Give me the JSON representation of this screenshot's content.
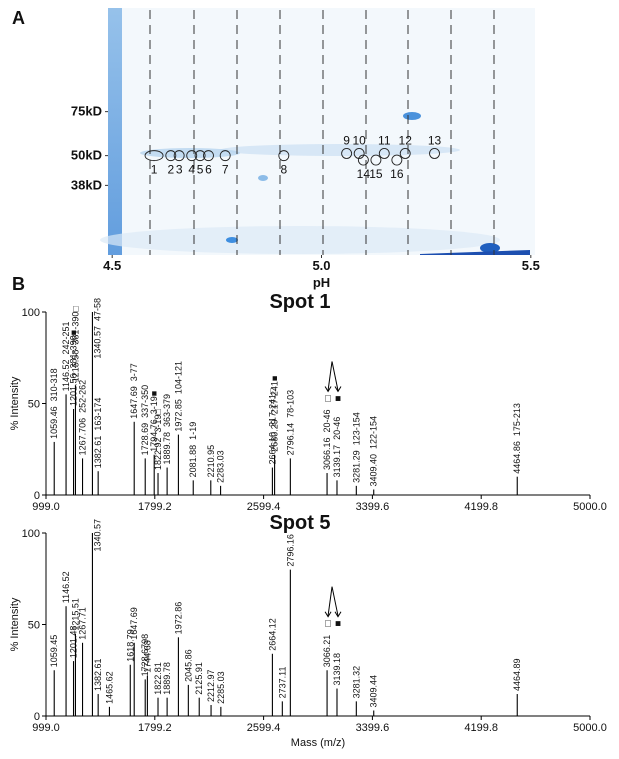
{
  "chart_data": [
    {
      "type": "gel",
      "panel": "A",
      "xlabel": "pH",
      "xlim": [
        4.49,
        5.51
      ],
      "xticks": [
        4.5,
        {
          "value": 5,
          "label": "5.0"
        },
        5.5
      ],
      "ylim": [
        195,
        20
      ],
      "ylog": true,
      "yticks": [
        {
          "value": 75,
          "label": "75kD"
        },
        {
          "value": 50,
          "label": "50kD"
        },
        {
          "value": 38,
          "label": "38kD"
        }
      ],
      "spots": [
        {
          "label": "1",
          "ph": 4.6,
          "mw": 50
        },
        {
          "label": "2",
          "ph": 4.64,
          "mw": 50
        },
        {
          "label": "3",
          "ph": 4.66,
          "mw": 50
        },
        {
          "label": "4",
          "ph": 4.69,
          "mw": 50
        },
        {
          "label": "5",
          "ph": 4.71,
          "mw": 50
        },
        {
          "label": "6",
          "ph": 4.73,
          "mw": 50
        },
        {
          "label": "7",
          "ph": 4.77,
          "mw": 50
        },
        {
          "label": "8",
          "ph": 4.91,
          "mw": 50
        },
        {
          "label": "9",
          "ph": 5.06,
          "mw": 51
        },
        {
          "label": "10",
          "ph": 5.09,
          "mw": 51
        },
        {
          "label": "11",
          "ph": 5.15,
          "mw": 51
        },
        {
          "label": "12",
          "ph": 5.2,
          "mw": 51
        },
        {
          "label": "13",
          "ph": 5.27,
          "mw": 51
        },
        {
          "label": "14",
          "ph": 5.1,
          "mw": 48
        },
        {
          "label": "15",
          "ph": 5.13,
          "mw": 48
        },
        {
          "label": "16",
          "ph": 5.18,
          "mw": 48
        }
      ]
    },
    {
      "type": "spectrum",
      "panel": "B",
      "title": "Spot 1",
      "ylabel": "% Intensity",
      "xlim": [
        999,
        5000
      ],
      "xticks": [
        {
          "value": 999,
          "label": "999.0"
        },
        1799.2,
        2599.4,
        3399.6,
        4199.8,
        {
          "value": 5000,
          "label": "5000.0"
        }
      ],
      "ylim": [
        0,
        100
      ],
      "yticks": [
        0,
        50,
        100
      ],
      "peaks": [
        {
          "mz": 1059.46,
          "intensity": 29,
          "residues": "310-318"
        },
        {
          "mz": 1146.52,
          "intensity": 55,
          "residues": "242-251"
        },
        {
          "mz": 1201.56,
          "intensity": 47,
          "residues": "381-390■"
        },
        {
          "mz": 1215.58,
          "intensity": 60,
          "residues": "381-390□"
        },
        {
          "mz": 1267.706,
          "intensity": 20,
          "residues": "252-262"
        },
        {
          "mz": 1340.57,
          "intensity": 100,
          "residues": "47-58"
        },
        {
          "mz": 1382.61,
          "intensity": 13,
          "residues": "163-174"
        },
        {
          "mz": 1647.69,
          "intensity": 40,
          "residues": "3-77"
        },
        {
          "mz": 1728.69,
          "intensity": 20,
          "residues": "337-350"
        },
        {
          "mz": 1794.76,
          "intensity": 22,
          "residues": "3-19■"
        },
        {
          "mz": 1822.92,
          "intensity": 12,
          "residues": "3-19□"
        },
        {
          "mz": 1889.78,
          "intensity": 15,
          "residues": "363-379"
        },
        {
          "mz": 1972.85,
          "intensity": 33,
          "residues": "104-121"
        },
        {
          "mz": 2081.88,
          "intensity": 8,
          "residues": "1-19"
        },
        {
          "mz": 2210.95,
          "intensity": 8
        },
        {
          "mz": 2283.03,
          "intensity": 5
        },
        {
          "mz": 2664.1,
          "mz_label": "2664.10",
          "intensity": 15,
          "residues": "217-241□"
        },
        {
          "mz": 2680.29,
          "intensity": 22,
          "residues": "217-241■"
        },
        {
          "mz": 2796.14,
          "intensity": 20,
          "residues": "78-103"
        },
        {
          "mz": 3066.16,
          "intensity": 12,
          "residues": "20-46",
          "marker": "□"
        },
        {
          "mz": 3139.17,
          "intensity": 8,
          "residues": "20-46",
          "marker": "■"
        },
        {
          "mz": 3281.29,
          "intensity": 5,
          "residues": "123-154"
        },
        {
          "mz": 3409.4,
          "mz_label": "3409.40",
          "intensity": 3,
          "residues": "122-154"
        },
        {
          "mz": 4464.86,
          "intensity": 10,
          "residues": "175-213"
        }
      ]
    },
    {
      "type": "spectrum",
      "title": "Spot 5",
      "ylabel": "% Intensity",
      "xlabel": "Mass (m/z)",
      "xlim": [
        999,
        5000
      ],
      "xticks": [
        {
          "value": 999,
          "label": "999.0"
        },
        1799.2,
        2599.4,
        3399.6,
        4199.8,
        {
          "value": 5000,
          "label": "5000.0"
        }
      ],
      "ylim": [
        0,
        100
      ],
      "yticks": [
        0,
        50,
        100
      ],
      "peaks": [
        {
          "mz": 1059.45,
          "intensity": 25
        },
        {
          "mz": 1146.52,
          "intensity": 60
        },
        {
          "mz": 1201.48,
          "intensity": 30
        },
        {
          "mz": 1215.51,
          "intensity": 45
        },
        {
          "mz": 1267.71,
          "intensity": 40
        },
        {
          "mz": 1340.57,
          "intensity": 100
        },
        {
          "mz": 1382.61,
          "intensity": 12
        },
        {
          "mz": 1465.62,
          "intensity": 5
        },
        {
          "mz": 1618.79,
          "intensity": 28
        },
        {
          "mz": 1647.69,
          "intensity": 40
        },
        {
          "mz": 1728.6798,
          "intensity": 20
        },
        {
          "mz": 1744.68,
          "intensity": 22
        },
        {
          "mz": 1822.81,
          "intensity": 10
        },
        {
          "mz": 1889.78,
          "intensity": 10
        },
        {
          "mz": 1972.86,
          "intensity": 43
        },
        {
          "mz": 2045.86,
          "intensity": 17
        },
        {
          "mz": 2125.91,
          "intensity": 10
        },
        {
          "mz": 2212.97,
          "intensity": 6
        },
        {
          "mz": 2285.03,
          "intensity": 5
        },
        {
          "mz": 2664.12,
          "intensity": 34
        },
        {
          "mz": 2737.11,
          "intensity": 8
        },
        {
          "mz": 2796.16,
          "intensity": 80
        },
        {
          "mz": 3066.21,
          "intensity": 25,
          "marker": "□"
        },
        {
          "mz": 3139.18,
          "intensity": 15,
          "marker": "■"
        },
        {
          "mz": 3281.32,
          "intensity": 8
        },
        {
          "mz": 3409.44,
          "intensity": 3
        },
        {
          "mz": 4464.89,
          "intensity": 12
        }
      ]
    }
  ]
}
